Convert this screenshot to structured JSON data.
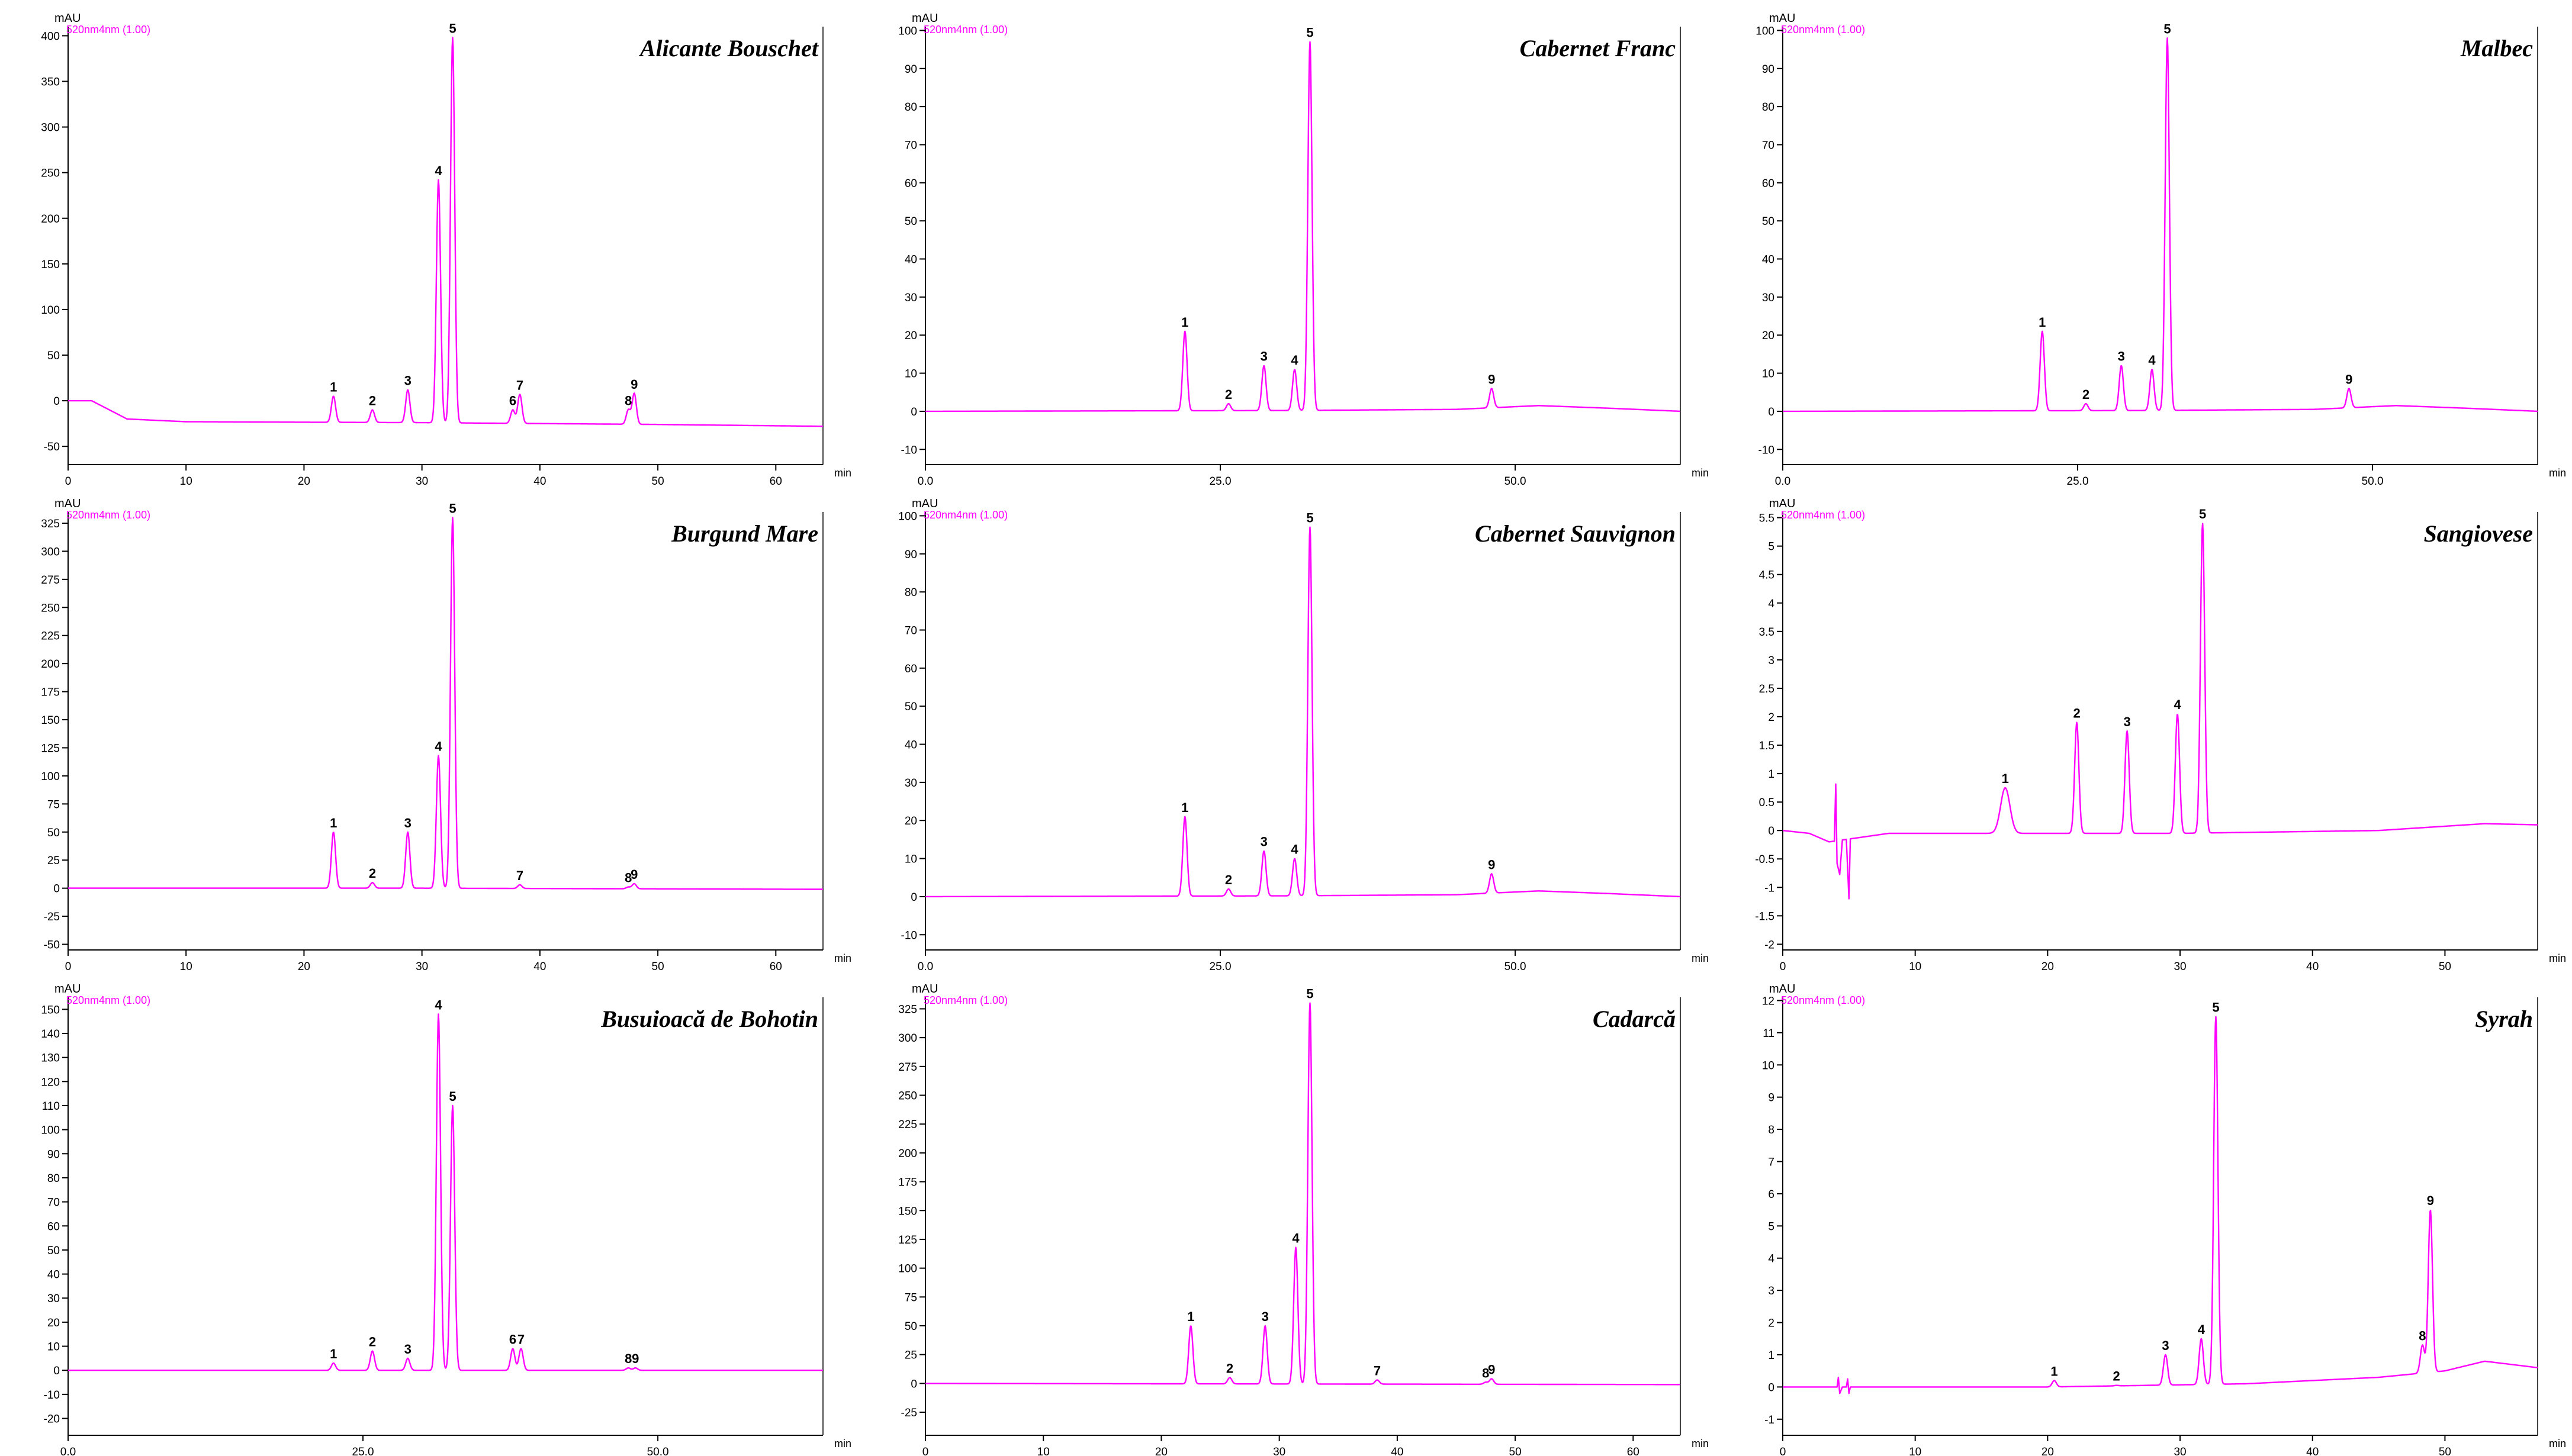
{
  "colors": {
    "trace": "#ff00ff",
    "axis": "#000000",
    "label": "#000000"
  },
  "chart_data": [
    {
      "type": "line",
      "title": "Alicante Bouschet",
      "ylabel": "mAU",
      "xlabel": "min",
      "channel": "520nm4nm (1.00)",
      "xlim": [
        0,
        64
      ],
      "ylim": [
        -70,
        410
      ],
      "xticks": [
        0,
        10,
        20,
        30,
        40,
        50,
        60
      ],
      "xticklabels": [
        "0",
        "10",
        "20",
        "30",
        "40",
        "50",
        "60"
      ],
      "yticks": [
        -50,
        0,
        50,
        100,
        150,
        200,
        250,
        300,
        350,
        400
      ],
      "baseline": [
        [
          0,
          0
        ],
        [
          2,
          0
        ],
        [
          3.5,
          -10
        ],
        [
          5,
          -20
        ],
        [
          10,
          -23
        ],
        [
          30,
          -24
        ],
        [
          50,
          -26
        ],
        [
          64,
          -28
        ]
      ],
      "peaks": [
        {
          "label": "1",
          "x": 22.5,
          "y": 5
        },
        {
          "label": "2",
          "x": 25.8,
          "y": -10
        },
        {
          "label": "3",
          "x": 28.8,
          "y": 12
        },
        {
          "label": "4",
          "x": 31.4,
          "y": 242
        },
        {
          "label": "5",
          "x": 32.6,
          "y": 398
        },
        {
          "label": "6",
          "x": 37.7,
          "y": -10
        },
        {
          "label": "7",
          "x": 38.3,
          "y": 7
        },
        {
          "label": "8",
          "x": 47.5,
          "y": -10
        },
        {
          "label": "9",
          "x": 48.0,
          "y": 8
        }
      ]
    },
    {
      "type": "line",
      "title": "Cabernet Franc",
      "ylabel": "mAU",
      "xlabel": "min",
      "channel": "520nm4nm (1.00)",
      "xlim": [
        0,
        64
      ],
      "ylim": [
        -14,
        101
      ],
      "xticks": [
        0,
        25,
        50
      ],
      "xticklabels": [
        "0.0",
        "25.0",
        "50.0"
      ],
      "yticks": [
        -10,
        0,
        10,
        20,
        30,
        40,
        50,
        60,
        70,
        80,
        90,
        100
      ],
      "baseline": [
        [
          0,
          0
        ],
        [
          30,
          0.2
        ],
        [
          45,
          0.5
        ],
        [
          52,
          1.5
        ],
        [
          58,
          0.8
        ],
        [
          64,
          0
        ]
      ],
      "peaks": [
        {
          "label": "1",
          "x": 22.0,
          "y": 21
        },
        {
          "label": "2",
          "x": 25.7,
          "y": 2
        },
        {
          "label": "3",
          "x": 28.7,
          "y": 12
        },
        {
          "label": "4",
          "x": 31.3,
          "y": 11
        },
        {
          "label": "5",
          "x": 32.6,
          "y": 97
        },
        {
          "label": "9",
          "x": 48.0,
          "y": 6
        }
      ]
    },
    {
      "type": "line",
      "title": "Malbec",
      "ylabel": "mAU",
      "xlabel": "min",
      "channel": "520nm4nm (1.00)",
      "xlim": [
        0,
        64
      ],
      "ylim": [
        -14,
        101
      ],
      "xticks": [
        0,
        25,
        50
      ],
      "xticklabels": [
        "0.0",
        "25.0",
        "50.0"
      ],
      "yticks": [
        -10,
        0,
        10,
        20,
        30,
        40,
        50,
        60,
        70,
        80,
        90,
        100
      ],
      "baseline": [
        [
          0,
          0
        ],
        [
          30,
          0.2
        ],
        [
          45,
          0.5
        ],
        [
          52,
          1.5
        ],
        [
          58,
          0.8
        ],
        [
          64,
          0
        ]
      ],
      "peaks": [
        {
          "label": "1",
          "x": 22.0,
          "y": 21
        },
        {
          "label": "2",
          "x": 25.7,
          "y": 2
        },
        {
          "label": "3",
          "x": 28.7,
          "y": 12
        },
        {
          "label": "4",
          "x": 31.3,
          "y": 11
        },
        {
          "label": "5",
          "x": 32.6,
          "y": 98
        },
        {
          "label": "9",
          "x": 48.0,
          "y": 6
        }
      ]
    },
    {
      "type": "line",
      "title": "Burgund Mare",
      "ylabel": "mAU",
      "xlabel": "min",
      "channel": "520nm4nm (1.00)",
      "xlim": [
        0,
        64
      ],
      "ylim": [
        -55,
        335
      ],
      "xticks": [
        0,
        10,
        20,
        30,
        40,
        50,
        60
      ],
      "xticklabels": [
        "0",
        "10",
        "20",
        "30",
        "40",
        "50",
        "60"
      ],
      "yticks": [
        -50,
        -25,
        0,
        25,
        50,
        75,
        100,
        125,
        150,
        175,
        200,
        225,
        250,
        275,
        300,
        325
      ],
      "baseline": [
        [
          0,
          0
        ],
        [
          30,
          0
        ],
        [
          64,
          -1
        ]
      ],
      "peaks": [
        {
          "label": "1",
          "x": 22.5,
          "y": 50
        },
        {
          "label": "2",
          "x": 25.8,
          "y": 5
        },
        {
          "label": "3",
          "x": 28.8,
          "y": 50
        },
        {
          "label": "4",
          "x": 31.4,
          "y": 118
        },
        {
          "label": "5",
          "x": 32.6,
          "y": 330
        },
        {
          "label": "7",
          "x": 38.3,
          "y": 3
        },
        {
          "label": "8",
          "x": 47.5,
          "y": 1
        },
        {
          "label": "9",
          "x": 48.0,
          "y": 4
        }
      ]
    },
    {
      "type": "line",
      "title": "Cabernet Sauvignon",
      "ylabel": "mAU",
      "xlabel": "min",
      "channel": "520nm4nm (1.00)",
      "xlim": [
        0,
        64
      ],
      "ylim": [
        -14,
        101
      ],
      "xticks": [
        0,
        25,
        50
      ],
      "xticklabels": [
        "0.0",
        "25.0",
        "50.0"
      ],
      "yticks": [
        -10,
        0,
        10,
        20,
        30,
        40,
        50,
        60,
        70,
        80,
        90,
        100
      ],
      "baseline": [
        [
          0,
          0
        ],
        [
          30,
          0.2
        ],
        [
          45,
          0.5
        ],
        [
          52,
          1.5
        ],
        [
          58,
          0.8
        ],
        [
          64,
          0
        ]
      ],
      "peaks": [
        {
          "label": "1",
          "x": 22.0,
          "y": 21
        },
        {
          "label": "2",
          "x": 25.7,
          "y": 2
        },
        {
          "label": "3",
          "x": 28.7,
          "y": 12
        },
        {
          "label": "4",
          "x": 31.3,
          "y": 10
        },
        {
          "label": "5",
          "x": 32.6,
          "y": 97
        },
        {
          "label": "9",
          "x": 48.0,
          "y": 6
        }
      ]
    },
    {
      "type": "line",
      "title": "Sangiovese",
      "ylabel": "mAU",
      "xlabel": "min",
      "channel": "520nm4nm (1.00)",
      "xlim": [
        0,
        57
      ],
      "ylim": [
        -2.1,
        5.6
      ],
      "xticks": [
        0,
        10,
        20,
        30,
        40,
        50
      ],
      "xticklabels": [
        "0",
        "10",
        "20",
        "30",
        "40",
        "50"
      ],
      "yticks": [
        -2.0,
        -1.5,
        -1.0,
        -0.5,
        0.0,
        0.5,
        1.0,
        1.5,
        2.0,
        2.5,
        3.0,
        3.5,
        4.0,
        4.5,
        5.0,
        5.5
      ],
      "baseline": [
        [
          0,
          0.0
        ],
        [
          2,
          -0.05
        ],
        [
          3.5,
          -0.2
        ],
        [
          8,
          -0.05
        ],
        [
          30,
          -0.05
        ],
        [
          45,
          0.0
        ],
        [
          53,
          0.12
        ],
        [
          57,
          0.1
        ]
      ],
      "disturbance": [
        [
          3.9,
          0.0
        ],
        [
          4.0,
          1.0
        ],
        [
          4.1,
          -0.4
        ],
        [
          4.3,
          -0.6
        ],
        [
          4.5,
          0.0
        ],
        [
          4.8,
          0.0
        ],
        [
          5.0,
          -1.05
        ],
        [
          5.1,
          0.0
        ]
      ],
      "peaks": [
        {
          "label": "1",
          "x": 16.8,
          "y": 0.75
        },
        {
          "label": "2",
          "x": 22.2,
          "y": 1.9
        },
        {
          "label": "3",
          "x": 26.0,
          "y": 1.75
        },
        {
          "label": "4",
          "x": 29.8,
          "y": 2.05
        },
        {
          "label": "5",
          "x": 31.7,
          "y": 5.4
        }
      ]
    },
    {
      "type": "line",
      "title": "Busuioacă de Bohotin",
      "ylabel": "mAU",
      "xlabel": "min",
      "channel": "520nm4nm (1.00)",
      "xlim": [
        0,
        64
      ],
      "ylim": [
        -27,
        155
      ],
      "xticks": [
        0,
        25,
        50
      ],
      "xticklabels": [
        "0.0",
        "25.0",
        "50.0"
      ],
      "yticks": [
        -20,
        -10,
        0,
        10,
        20,
        30,
        40,
        50,
        60,
        70,
        80,
        90,
        100,
        110,
        120,
        130,
        140,
        150
      ],
      "baseline": [
        [
          0,
          0
        ],
        [
          64,
          0
        ]
      ],
      "peaks": [
        {
          "label": "1",
          "x": 22.5,
          "y": 3
        },
        {
          "label": "2",
          "x": 25.8,
          "y": 8
        },
        {
          "label": "3",
          "x": 28.8,
          "y": 5
        },
        {
          "label": "4",
          "x": 31.4,
          "y": 148
        },
        {
          "label": "5",
          "x": 32.6,
          "y": 110
        },
        {
          "label": "6",
          "x": 37.7,
          "y": 9
        },
        {
          "label": "7",
          "x": 38.4,
          "y": 9
        },
        {
          "label": "8",
          "x": 47.5,
          "y": 1
        },
        {
          "label": "9",
          "x": 48.1,
          "y": 1
        }
      ]
    },
    {
      "type": "line",
      "title": "Cadarcă",
      "ylabel": "mAU",
      "xlabel": "min",
      "channel": "520nm4nm (1.00)",
      "xlim": [
        0,
        64
      ],
      "ylim": [
        -45,
        335
      ],
      "xticks": [
        0,
        10,
        20,
        30,
        40,
        50,
        60
      ],
      "xticklabels": [
        "0",
        "10",
        "20",
        "30",
        "40",
        "50",
        "60"
      ],
      "yticks": [
        -25,
        0,
        25,
        50,
        75,
        100,
        125,
        150,
        175,
        200,
        225,
        250,
        275,
        300,
        325
      ],
      "baseline": [
        [
          0,
          0
        ],
        [
          64,
          -1
        ]
      ],
      "peaks": [
        {
          "label": "1",
          "x": 22.5,
          "y": 50
        },
        {
          "label": "2",
          "x": 25.8,
          "y": 5
        },
        {
          "label": "3",
          "x": 28.8,
          "y": 50
        },
        {
          "label": "4",
          "x": 31.4,
          "y": 118
        },
        {
          "label": "5",
          "x": 32.6,
          "y": 330
        },
        {
          "label": "7",
          "x": 38.3,
          "y": 3
        },
        {
          "label": "8",
          "x": 47.5,
          "y": 1
        },
        {
          "label": "9",
          "x": 48.0,
          "y": 4
        }
      ]
    },
    {
      "type": "line",
      "title": "Syrah",
      "ylabel": "mAU",
      "xlabel": "min",
      "channel": "520nm4nm (1.00)",
      "xlim": [
        0,
        57
      ],
      "ylim": [
        -1.5,
        12.1
      ],
      "xticks": [
        0,
        10,
        20,
        30,
        40,
        50
      ],
      "xticklabels": [
        "0",
        "10",
        "20",
        "30",
        "40",
        "50"
      ],
      "yticks": [
        -1,
        0,
        1,
        2,
        3,
        4,
        5,
        6,
        7,
        8,
        9,
        10,
        11,
        12
      ],
      "baseline": [
        [
          0,
          0
        ],
        [
          20,
          0
        ],
        [
          35,
          0.1
        ],
        [
          45,
          0.3
        ],
        [
          50,
          0.5
        ],
        [
          53,
          0.8
        ],
        [
          57,
          0.6
        ]
      ],
      "disturbance": [
        [
          4.1,
          0.0
        ],
        [
          4.2,
          0.3
        ],
        [
          4.3,
          -0.2
        ],
        [
          4.5,
          0.0
        ],
        [
          4.8,
          0.0
        ],
        [
          4.9,
          0.25
        ],
        [
          5.0,
          -0.2
        ],
        [
          5.1,
          0.0
        ]
      ],
      "peaks": [
        {
          "label": "1",
          "x": 20.5,
          "y": 0.2
        },
        {
          "label": "2",
          "x": 25.2,
          "y": 0.05
        },
        {
          "label": "3",
          "x": 28.9,
          "y": 1.0
        },
        {
          "label": "4",
          "x": 31.6,
          "y": 1.5
        },
        {
          "label": "5",
          "x": 32.7,
          "y": 11.5
        },
        {
          "label": "8",
          "x": 48.3,
          "y": 1.3
        },
        {
          "label": "9",
          "x": 48.9,
          "y": 5.5
        }
      ]
    }
  ]
}
